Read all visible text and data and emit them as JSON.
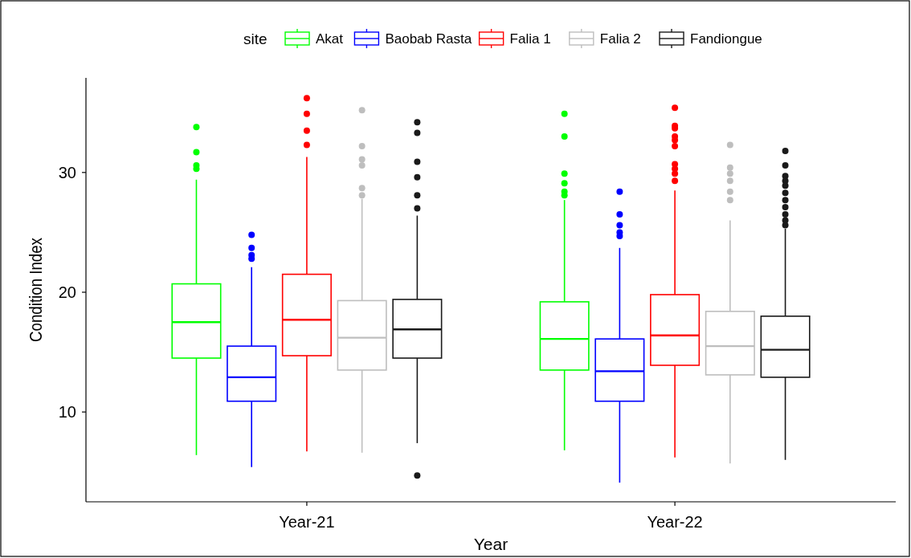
{
  "chart_data": {
    "type": "box",
    "xlabel": "Year",
    "ylabel": "Condition Index",
    "legend_title": "site",
    "legend": "top",
    "categories": [
      "Year-21",
      "Year-22"
    ],
    "ylim": [
      2.5,
      37.9
    ],
    "yticks": [
      10,
      20,
      30
    ],
    "series": [
      {
        "name": "Akat",
        "color": "#00ff00",
        "boxes": [
          {
            "low": 6.4,
            "q1": 14.5,
            "median": 17.5,
            "q3": 20.7,
            "high": 29.4,
            "outliers": [
              33.8,
              31.7,
              30.6,
              30.3
            ]
          },
          {
            "low": 6.8,
            "q1": 13.5,
            "median": 16.1,
            "q3": 19.2,
            "high": 27.7,
            "outliers": [
              34.9,
              33.0,
              29.9,
              29.1,
              28.4,
              28.1
            ]
          }
        ]
      },
      {
        "name": "Baobab Rasta",
        "color": "#0000ff",
        "boxes": [
          {
            "low": 5.4,
            "q1": 10.9,
            "median": 12.9,
            "q3": 15.5,
            "high": 22.1,
            "outliers": [
              24.8,
              23.7,
              23.1,
              22.8
            ]
          },
          {
            "low": 4.1,
            "q1": 10.9,
            "median": 13.4,
            "q3": 16.1,
            "high": 23.7,
            "outliers": [
              28.4,
              26.5,
              25.6,
              25.0,
              24.7
            ]
          }
        ]
      },
      {
        "name": "Falia 1",
        "color": "#ff0000",
        "boxes": [
          {
            "low": 6.7,
            "q1": 14.7,
            "median": 17.7,
            "q3": 21.5,
            "high": 31.3,
            "outliers": [
              36.2,
              34.9,
              33.5,
              32.3
            ]
          },
          {
            "low": 6.2,
            "q1": 13.9,
            "median": 16.4,
            "q3": 19.8,
            "high": 28.5,
            "outliers": [
              35.4,
              33.9,
              33.7,
              33.0,
              32.7,
              32.2,
              30.7,
              30.3,
              29.9,
              29.3
            ]
          }
        ]
      },
      {
        "name": "Falia 2",
        "color": "#bebebe",
        "boxes": [
          {
            "low": 6.6,
            "q1": 13.5,
            "median": 16.2,
            "q3": 19.3,
            "high": 27.8,
            "outliers": [
              35.2,
              32.2,
              31.1,
              30.6,
              28.7,
              28.1
            ]
          },
          {
            "low": 5.7,
            "q1": 13.1,
            "median": 15.5,
            "q3": 18.4,
            "high": 26.0,
            "outliers": [
              32.3,
              30.4,
              29.9,
              29.3,
              28.4,
              27.7
            ]
          }
        ]
      },
      {
        "name": "Fandiongue",
        "color": "#1a1a1a",
        "boxes": [
          {
            "low": 7.4,
            "q1": 14.5,
            "median": 16.9,
            "q3": 19.4,
            "high": 26.4,
            "outliers": [
              34.2,
              33.3,
              30.9,
              29.6,
              28.1,
              27.0,
              4.7
            ]
          },
          {
            "low": 6.0,
            "q1": 12.9,
            "median": 15.2,
            "q3": 18.0,
            "high": 25.3,
            "outliers": [
              31.8,
              30.6,
              29.7,
              29.3,
              28.9,
              28.3,
              27.7,
              27.1,
              26.5,
              26.0,
              25.6
            ]
          }
        ]
      }
    ]
  }
}
